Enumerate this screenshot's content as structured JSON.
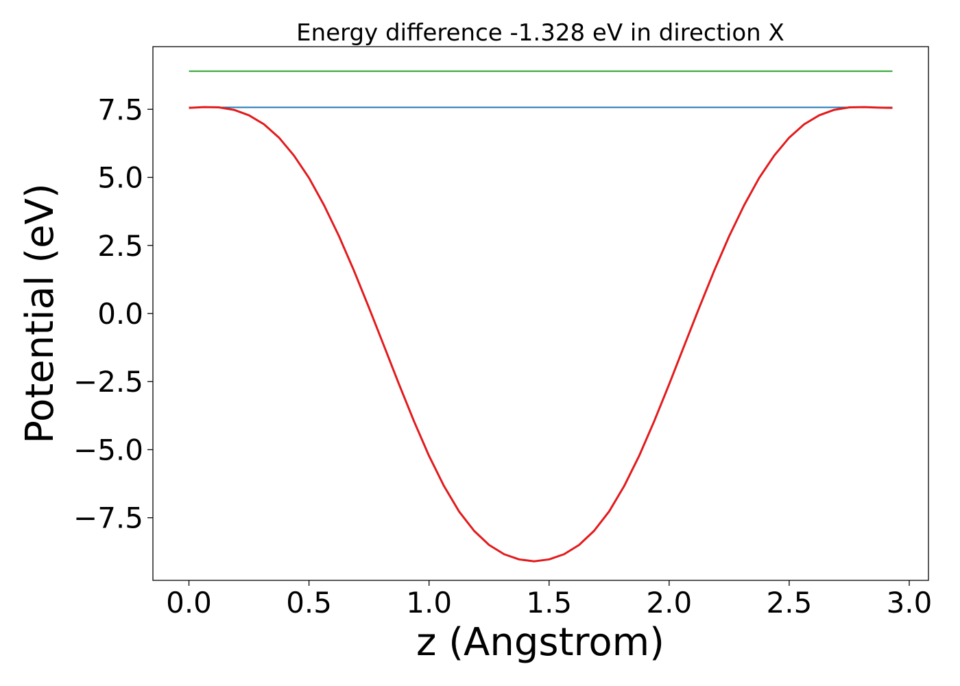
{
  "chart_data": {
    "type": "line",
    "title": "Energy difference -1.328 eV in direction X",
    "xlabel": "z (Angstrom)",
    "ylabel": "Potential (eV)",
    "xlim": [
      -0.15,
      3.08
    ],
    "ylim": [
      -9.8,
      9.8
    ],
    "grid": false,
    "x_ticks": [
      0.0,
      0.5,
      1.0,
      1.5,
      2.0,
      2.5,
      3.0
    ],
    "x_tick_labels": [
      "0.0",
      "0.5",
      "1.0",
      "1.5",
      "2.0",
      "2.5",
      "3.0"
    ],
    "y_ticks": [
      7.5,
      5.0,
      2.5,
      0.0,
      -2.5,
      -5.0,
      -7.5
    ],
    "y_tick_labels": [
      "7.5",
      "5.0",
      "2.5",
      "0.0",
      "−2.5",
      "−5.0",
      "−7.5"
    ],
    "series": [
      {
        "color": "#2ca02c",
        "x": [
          0.0,
          2.93
        ],
        "y": [
          8.9,
          8.9
        ]
      },
      {
        "color": "#1f77b4",
        "x": [
          0.0,
          2.93
        ],
        "y": [
          7.57,
          7.57
        ]
      },
      {
        "color": "#e31a1c",
        "x": [
          0.0,
          0.0625,
          0.125,
          0.1875,
          0.25,
          0.3125,
          0.375,
          0.4375,
          0.5,
          0.5625,
          0.625,
          0.6875,
          0.75,
          0.8125,
          0.875,
          0.9375,
          1.0,
          1.0625,
          1.125,
          1.1875,
          1.25,
          1.3125,
          1.375,
          1.4375,
          1.5,
          1.5625,
          1.625,
          1.6875,
          1.75,
          1.8125,
          1.875,
          1.9375,
          2.0,
          2.0625,
          2.125,
          2.1875,
          2.25,
          2.3125,
          2.375,
          2.4375,
          2.5,
          2.5625,
          2.625,
          2.6875,
          2.75,
          2.8125,
          2.875,
          2.93
        ],
        "y": [
          7.55,
          7.58,
          7.57,
          7.48,
          7.28,
          6.95,
          6.46,
          5.8,
          4.98,
          3.98,
          2.84,
          1.57,
          0.21,
          -1.19,
          -2.6,
          -3.96,
          -5.23,
          -6.34,
          -7.27,
          -7.98,
          -8.5,
          -8.84,
          -9.03,
          -9.1,
          -9.03,
          -8.84,
          -8.5,
          -7.98,
          -7.27,
          -6.34,
          -5.23,
          -3.96,
          -2.6,
          -1.19,
          0.21,
          1.57,
          2.84,
          3.98,
          4.98,
          5.8,
          6.46,
          6.95,
          7.28,
          7.48,
          7.57,
          7.58,
          7.56,
          7.55
        ]
      }
    ]
  }
}
